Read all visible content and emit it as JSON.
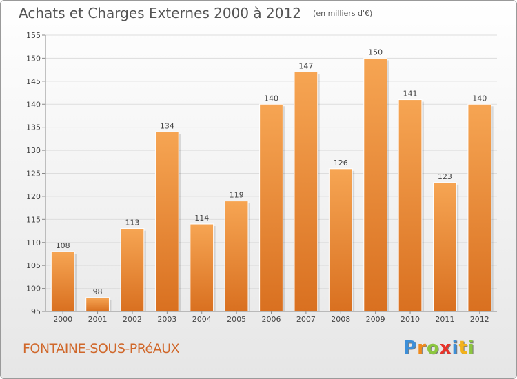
{
  "title": "Achats et Charges Externes 2000 à 2012",
  "unit_label": "(en milliers d'€)",
  "commune": "FONTAINE-SOUS-PRéAUX",
  "logo": {
    "letters": [
      "P",
      "r",
      "o",
      "x",
      "i",
      "t",
      "i"
    ]
  },
  "colors": {
    "bar_top": "#f6a553",
    "bar_bottom": "#d97020",
    "accent": "#d0672a"
  },
  "chart_data": {
    "type": "bar",
    "title": "Achats et Charges Externes 2000 à 2012",
    "xlabel": "",
    "ylabel": "",
    "categories": [
      "2000",
      "2001",
      "2002",
      "2003",
      "2004",
      "2005",
      "2006",
      "2007",
      "2008",
      "2009",
      "2010",
      "2011",
      "2012"
    ],
    "values": [
      108,
      98,
      113,
      134,
      114,
      119,
      140,
      147,
      126,
      150,
      141,
      123,
      140
    ],
    "ylim": [
      95,
      155
    ],
    "yticks": [
      95,
      100,
      105,
      110,
      115,
      120,
      125,
      130,
      135,
      140,
      145,
      150,
      155
    ],
    "grid": true,
    "data_labels": true
  }
}
